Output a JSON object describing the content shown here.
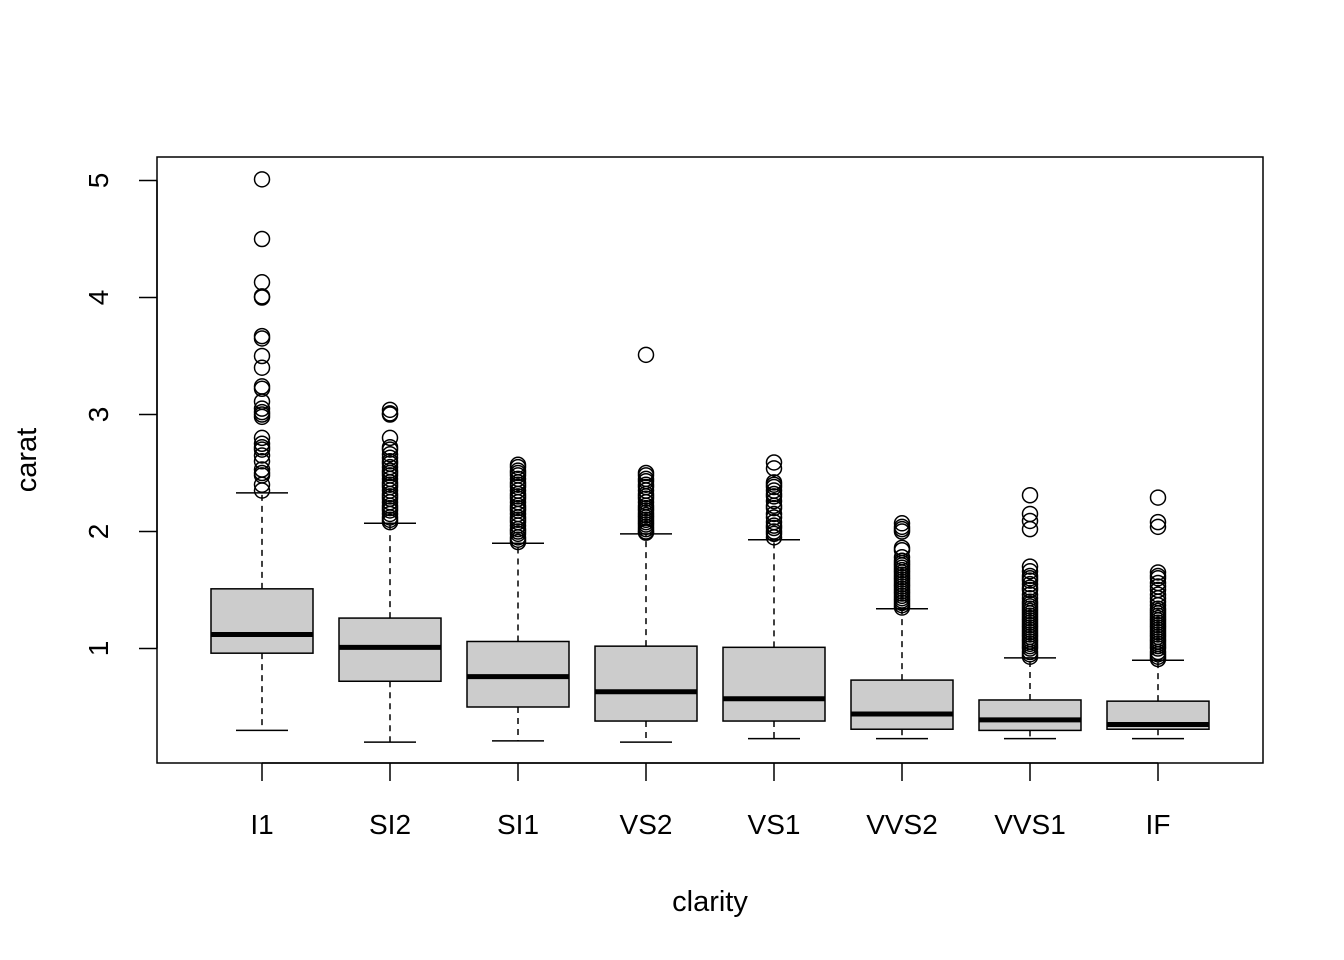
{
  "chart_data": {
    "type": "boxplot",
    "title": "",
    "xlabel": "clarity",
    "ylabel": "carat",
    "categories": [
      "I1",
      "SI2",
      "SI1",
      "VS2",
      "VS1",
      "VVS2",
      "VVS1",
      "IF"
    ],
    "ylim": [
      0.0,
      5.2
    ],
    "yticks": [
      1,
      2,
      3,
      4,
      5
    ],
    "grid": false,
    "box_fill": "#cccccc",
    "line_color": "#000000",
    "boxes": [
      {
        "name": "I1",
        "whisker_low": 0.3,
        "q1": 0.96,
        "median": 1.12,
        "q3": 1.51,
        "whisker_high": 2.33,
        "outliers": [
          2.35,
          2.4,
          2.48,
          2.5,
          2.53,
          2.6,
          2.65,
          2.7,
          2.72,
          2.75,
          2.8,
          2.98,
          3.0,
          3.02,
          3.05,
          3.11,
          3.22,
          3.24,
          3.4,
          3.5,
          3.65,
          3.67,
          4.0,
          4.01,
          4.13,
          4.5,
          5.01
        ]
      },
      {
        "name": "SI2",
        "whisker_low": 0.2,
        "q1": 0.72,
        "median": 1.01,
        "q3": 1.26,
        "whisker_high": 2.07,
        "outliers": [
          2.08,
          2.1,
          2.12,
          2.15,
          2.18,
          2.2,
          2.22,
          2.25,
          2.28,
          2.3,
          2.32,
          2.35,
          2.38,
          2.4,
          2.42,
          2.45,
          2.48,
          2.5,
          2.52,
          2.55,
          2.58,
          2.6,
          2.63,
          2.66,
          2.7,
          2.72,
          2.8,
          3.0,
          3.01,
          3.04
        ]
      },
      {
        "name": "SI1",
        "whisker_low": 0.21,
        "q1": 0.5,
        "median": 0.76,
        "q3": 1.06,
        "whisker_high": 1.9,
        "outliers": [
          1.91,
          1.93,
          1.95,
          1.98,
          2.0,
          2.02,
          2.05,
          2.08,
          2.1,
          2.12,
          2.15,
          2.18,
          2.2,
          2.22,
          2.25,
          2.28,
          2.3,
          2.32,
          2.35,
          2.38,
          2.4,
          2.42,
          2.45,
          2.48,
          2.5,
          2.52,
          2.55,
          2.57
        ]
      },
      {
        "name": "VS2",
        "whisker_low": 0.2,
        "q1": 0.38,
        "median": 0.63,
        "q3": 1.02,
        "whisker_high": 1.98,
        "outliers": [
          1.99,
          2.0,
          2.02,
          2.04,
          2.06,
          2.08,
          2.1,
          2.12,
          2.14,
          2.16,
          2.18,
          2.2,
          2.22,
          2.25,
          2.28,
          2.3,
          2.32,
          2.35,
          2.38,
          2.4,
          2.43,
          2.45,
          2.48,
          2.5,
          3.51
        ]
      },
      {
        "name": "VS1",
        "whisker_low": 0.23,
        "q1": 0.38,
        "median": 0.57,
        "q3": 1.01,
        "whisker_high": 1.93,
        "outliers": [
          1.95,
          1.98,
          2.0,
          2.03,
          2.05,
          2.08,
          2.12,
          2.15,
          2.2,
          2.22,
          2.26,
          2.3,
          2.32,
          2.35,
          2.38,
          2.4,
          2.42,
          2.54,
          2.59
        ]
      },
      {
        "name": "VVS2",
        "whisker_low": 0.23,
        "q1": 0.31,
        "median": 0.44,
        "q3": 0.73,
        "whisker_high": 1.34,
        "outliers": [
          1.35,
          1.37,
          1.39,
          1.41,
          1.43,
          1.45,
          1.47,
          1.49,
          1.51,
          1.53,
          1.55,
          1.57,
          1.59,
          1.61,
          1.63,
          1.65,
          1.67,
          1.69,
          1.71,
          1.73,
          1.75,
          1.78,
          1.84,
          1.86,
          2.0,
          2.02,
          2.04,
          2.07
        ]
      },
      {
        "name": "VVS1",
        "whisker_low": 0.23,
        "q1": 0.3,
        "median": 0.39,
        "q3": 0.56,
        "whisker_high": 0.92,
        "outliers": [
          0.93,
          0.95,
          0.97,
          1.0,
          1.02,
          1.04,
          1.06,
          1.08,
          1.1,
          1.12,
          1.14,
          1.16,
          1.18,
          1.2,
          1.22,
          1.24,
          1.26,
          1.28,
          1.3,
          1.32,
          1.34,
          1.36,
          1.38,
          1.4,
          1.43,
          1.46,
          1.5,
          1.52,
          1.55,
          1.58,
          1.6,
          1.62,
          1.66,
          1.7,
          2.02,
          2.09,
          2.15,
          2.31
        ]
      },
      {
        "name": "IF",
        "whisker_low": 0.23,
        "q1": 0.31,
        "median": 0.35,
        "q3": 0.55,
        "whisker_high": 0.9,
        "outliers": [
          0.91,
          0.93,
          0.95,
          0.97,
          1.0,
          1.02,
          1.04,
          1.06,
          1.08,
          1.1,
          1.12,
          1.14,
          1.16,
          1.18,
          1.2,
          1.22,
          1.24,
          1.26,
          1.28,
          1.3,
          1.32,
          1.34,
          1.37,
          1.4,
          1.43,
          1.46,
          1.5,
          1.53,
          1.56,
          1.6,
          1.62,
          1.65,
          2.04,
          2.08,
          2.29
        ]
      }
    ]
  }
}
